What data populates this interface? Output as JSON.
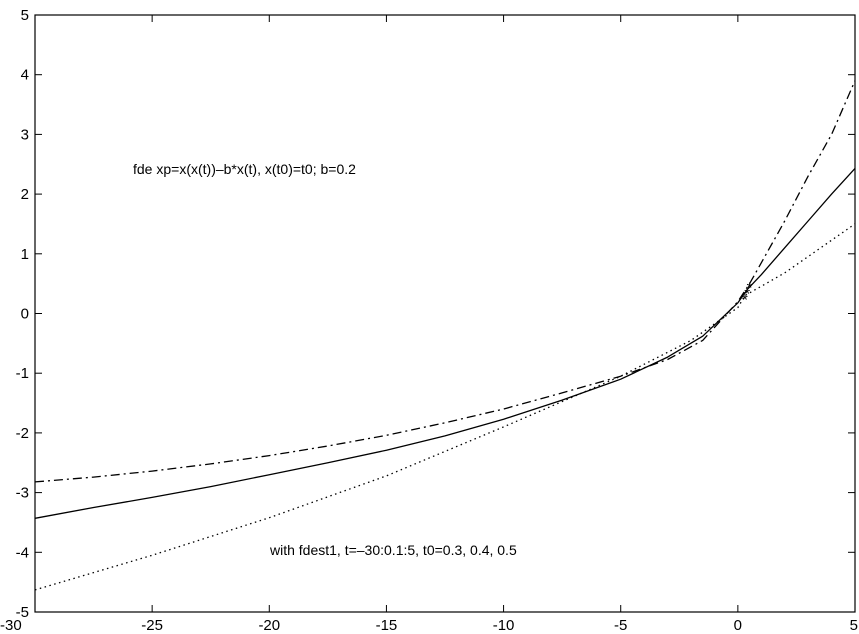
{
  "chart_data": {
    "type": "line",
    "xlim": [
      -30,
      5
    ],
    "ylim": [
      -5,
      5
    ],
    "grid": false,
    "xticks": [
      "-30",
      "-25",
      "-20",
      "-15",
      "-10",
      "-5",
      "0",
      "5"
    ],
    "yticks": [
      "-5",
      "-4",
      "-3",
      "-2",
      "-1",
      "0",
      "1",
      "2",
      "3",
      "4",
      "5"
    ],
    "xtick_values": [
      -30,
      -25,
      -20,
      -15,
      -10,
      -5,
      0,
      5
    ],
    "ytick_values": [
      -5,
      -4,
      -3,
      -2,
      -1,
      0,
      1,
      2,
      3,
      4,
      5
    ],
    "annotations": [
      "fde  xp=x(x(t))–b*x(t), x(t0)=t0;  b=0.2",
      "with fdest1,  t=–30:0.1:5,  t0=0.3, 0.4, 0.5"
    ],
    "series": [
      {
        "style": "solid",
        "x": [
          -30,
          -27.5,
          -25,
          -22.5,
          -20,
          -17.5,
          -15,
          -12.5,
          -10,
          -7.5,
          -5,
          -3,
          -1.5,
          0,
          0.4,
          1,
          2,
          3,
          4,
          5
        ],
        "y": [
          -3.43,
          -3.25,
          -3.08,
          -2.9,
          -2.7,
          -2.5,
          -2.29,
          -2.05,
          -1.77,
          -1.45,
          -1.1,
          -0.73,
          -0.38,
          0.18,
          0.4,
          0.65,
          1.1,
          1.55,
          2.0,
          2.43
        ]
      },
      {
        "style": "dashdot",
        "x": [
          -30,
          -27.5,
          -25,
          -22.5,
          -20,
          -17.5,
          -15,
          -12.5,
          -10,
          -7.5,
          -5,
          -3,
          -1.5,
          0,
          0.5,
          1,
          2,
          3,
          4,
          5
        ],
        "y": [
          -2.82,
          -2.74,
          -2.64,
          -2.52,
          -2.38,
          -2.22,
          -2.04,
          -1.83,
          -1.6,
          -1.33,
          -1.05,
          -0.77,
          -0.45,
          0.2,
          0.5,
          0.85,
          1.55,
          2.3,
          3.0,
          3.9
        ]
      },
      {
        "style": "dotted",
        "x": [
          -30,
          -25,
          -20,
          -15,
          -10,
          -5,
          -2,
          0,
          0.3,
          2,
          5
        ],
        "y": [
          -4.63,
          -4.05,
          -3.42,
          -2.72,
          -1.9,
          -1.05,
          -0.45,
          0.1,
          0.3,
          0.68,
          1.5
        ]
      }
    ],
    "markers": {
      "symbol": "*",
      "x": [
        0.3,
        0.4,
        0.5
      ],
      "y": [
        0.3,
        0.4,
        0.5
      ]
    }
  }
}
